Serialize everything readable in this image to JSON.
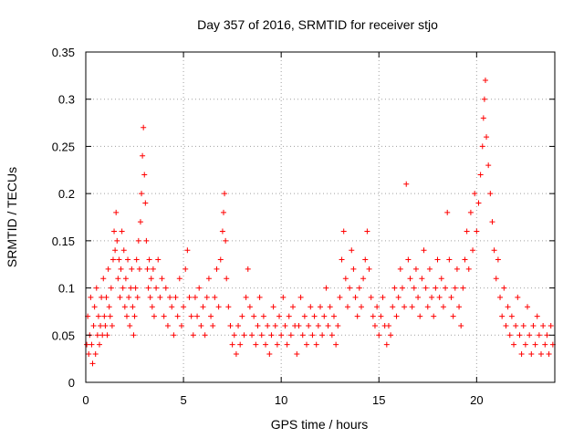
{
  "chart_data": {
    "type": "scatter",
    "title": "Day 357 of 2016, SRMTID for receiver stjo",
    "xlabel": "GPS time / hours",
    "ylabel": "SRMTID / TECUs",
    "xlim": [
      0,
      24
    ],
    "ylim": [
      0,
      0.35
    ],
    "xticks": [
      0,
      5,
      10,
      15,
      20
    ],
    "xtick_labels": [
      "0",
      "5",
      "10",
      "15",
      "20"
    ],
    "yticks": [
      0,
      0.05,
      0.1,
      0.15,
      0.2,
      0.25,
      0.3,
      0.35
    ],
    "ytick_labels": [
      "0",
      "0.05",
      "0.1",
      "0.15",
      "0.2",
      "0.25",
      "0.3",
      "0.35"
    ],
    "grid": true,
    "marker": "+",
    "marker_color": "#ff0000",
    "series": [
      {
        "name": "SRMTID",
        "points": [
          [
            0.05,
            0.04
          ],
          [
            0.1,
            0.07
          ],
          [
            0.15,
            0.03
          ],
          [
            0.2,
            0.05
          ],
          [
            0.25,
            0.09
          ],
          [
            0.3,
            0.04
          ],
          [
            0.35,
            0.02
          ],
          [
            0.4,
            0.06
          ],
          [
            0.45,
            0.08
          ],
          [
            0.5,
            0.03
          ],
          [
            0.55,
            0.1
          ],
          [
            0.6,
            0.05
          ],
          [
            0.65,
            0.07
          ],
          [
            0.7,
            0.04
          ],
          [
            0.75,
            0.06
          ],
          [
            0.8,
            0.09
          ],
          [
            0.85,
            0.05
          ],
          [
            0.9,
            0.11
          ],
          [
            0.95,
            0.07
          ],
          [
            1.0,
            0.06
          ],
          [
            1.05,
            0.09
          ],
          [
            1.1,
            0.05
          ],
          [
            1.15,
            0.12
          ],
          [
            1.2,
            0.08
          ],
          [
            1.25,
            0.07
          ],
          [
            1.3,
            0.1
          ],
          [
            1.35,
            0.06
          ],
          [
            1.4,
            0.13
          ],
          [
            1.45,
            0.16
          ],
          [
            1.5,
            0.14
          ],
          [
            1.55,
            0.18
          ],
          [
            1.6,
            0.15
          ],
          [
            1.65,
            0.11
          ],
          [
            1.7,
            0.13
          ],
          [
            1.75,
            0.09
          ],
          [
            1.8,
            0.12
          ],
          [
            1.85,
            0.16
          ],
          [
            1.9,
            0.1
          ],
          [
            1.95,
            0.14
          ],
          [
            2.0,
            0.08
          ],
          [
            2.05,
            0.11
          ],
          [
            2.1,
            0.07
          ],
          [
            2.15,
            0.13
          ],
          [
            2.2,
            0.09
          ],
          [
            2.25,
            0.06
          ],
          [
            2.3,
            0.1
          ],
          [
            2.35,
            0.12
          ],
          [
            2.4,
            0.08
          ],
          [
            2.45,
            0.05
          ],
          [
            2.5,
            0.07
          ],
          [
            2.55,
            0.1
          ],
          [
            2.6,
            0.13
          ],
          [
            2.65,
            0.09
          ],
          [
            2.7,
            0.15
          ],
          [
            2.75,
            0.12
          ],
          [
            2.8,
            0.17
          ],
          [
            2.85,
            0.2
          ],
          [
            2.9,
            0.24
          ],
          [
            2.95,
            0.27
          ],
          [
            3.0,
            0.22
          ],
          [
            3.05,
            0.19
          ],
          [
            3.1,
            0.15
          ],
          [
            3.15,
            0.12
          ],
          [
            3.2,
            0.1
          ],
          [
            3.25,
            0.13
          ],
          [
            3.3,
            0.09
          ],
          [
            3.35,
            0.11
          ],
          [
            3.4,
            0.08
          ],
          [
            3.45,
            0.12
          ],
          [
            3.5,
            0.07
          ],
          [
            3.6,
            0.1
          ],
          [
            3.7,
            0.13
          ],
          [
            3.8,
            0.09
          ],
          [
            3.9,
            0.11
          ],
          [
            4.0,
            0.07
          ],
          [
            4.1,
            0.1
          ],
          [
            4.2,
            0.06
          ],
          [
            4.3,
            0.09
          ],
          [
            4.4,
            0.08
          ],
          [
            4.5,
            0.05
          ],
          [
            4.6,
            0.09
          ],
          [
            4.7,
            0.07
          ],
          [
            4.8,
            0.11
          ],
          [
            4.9,
            0.06
          ],
          [
            5.0,
            0.08
          ],
          [
            5.1,
            0.12
          ],
          [
            5.2,
            0.14
          ],
          [
            5.3,
            0.09
          ],
          [
            5.4,
            0.07
          ],
          [
            5.5,
            0.05
          ],
          [
            5.6,
            0.09
          ],
          [
            5.7,
            0.07
          ],
          [
            5.8,
            0.1
          ],
          [
            5.9,
            0.06
          ],
          [
            6.0,
            0.08
          ],
          [
            6.1,
            0.05
          ],
          [
            6.2,
            0.09
          ],
          [
            6.3,
            0.11
          ],
          [
            6.4,
            0.07
          ],
          [
            6.5,
            0.06
          ],
          [
            6.6,
            0.09
          ],
          [
            6.7,
            0.12
          ],
          [
            6.8,
            0.08
          ],
          [
            6.9,
            0.13
          ],
          [
            7.0,
            0.16
          ],
          [
            7.05,
            0.18
          ],
          [
            7.1,
            0.2
          ],
          [
            7.15,
            0.15
          ],
          [
            7.2,
            0.11
          ],
          [
            7.3,
            0.08
          ],
          [
            7.4,
            0.06
          ],
          [
            7.5,
            0.04
          ],
          [
            7.6,
            0.05
          ],
          [
            7.7,
            0.03
          ],
          [
            7.8,
            0.06
          ],
          [
            7.9,
            0.04
          ],
          [
            8.0,
            0.07
          ],
          [
            8.1,
            0.05
          ],
          [
            8.2,
            0.09
          ],
          [
            8.3,
            0.12
          ],
          [
            8.4,
            0.08
          ],
          [
            8.5,
            0.05
          ],
          [
            8.6,
            0.07
          ],
          [
            8.7,
            0.04
          ],
          [
            8.8,
            0.06
          ],
          [
            8.9,
            0.09
          ],
          [
            9.0,
            0.05
          ],
          [
            9.1,
            0.07
          ],
          [
            9.2,
            0.04
          ],
          [
            9.3,
            0.06
          ],
          [
            9.4,
            0.03
          ],
          [
            9.5,
            0.05
          ],
          [
            9.6,
            0.08
          ],
          [
            9.7,
            0.06
          ],
          [
            9.8,
            0.04
          ],
          [
            9.9,
            0.07
          ],
          [
            10.0,
            0.05
          ],
          [
            10.1,
            0.09
          ],
          [
            10.2,
            0.06
          ],
          [
            10.3,
            0.04
          ],
          [
            10.4,
            0.07
          ],
          [
            10.5,
            0.05
          ],
          [
            10.6,
            0.08
          ],
          [
            10.7,
            0.06
          ],
          [
            10.8,
            0.03
          ],
          [
            10.9,
            0.06
          ],
          [
            11.0,
            0.09
          ],
          [
            11.1,
            0.05
          ],
          [
            11.2,
            0.07
          ],
          [
            11.3,
            0.04
          ],
          [
            11.4,
            0.06
          ],
          [
            11.5,
            0.08
          ],
          [
            11.6,
            0.05
          ],
          [
            11.7,
            0.07
          ],
          [
            11.8,
            0.04
          ],
          [
            11.9,
            0.06
          ],
          [
            12.0,
            0.08
          ],
          [
            12.1,
            0.05
          ],
          [
            12.2,
            0.07
          ],
          [
            12.3,
            0.1
          ],
          [
            12.4,
            0.06
          ],
          [
            12.5,
            0.08
          ],
          [
            12.6,
            0.05
          ],
          [
            12.7,
            0.07
          ],
          [
            12.8,
            0.04
          ],
          [
            12.9,
            0.06
          ],
          [
            13.0,
            0.09
          ],
          [
            13.1,
            0.13
          ],
          [
            13.2,
            0.16
          ],
          [
            13.3,
            0.11
          ],
          [
            13.4,
            0.08
          ],
          [
            13.5,
            0.1
          ],
          [
            13.6,
            0.14
          ],
          [
            13.7,
            0.12
          ],
          [
            13.8,
            0.09
          ],
          [
            13.9,
            0.07
          ],
          [
            14.0,
            0.1
          ],
          [
            14.1,
            0.08
          ],
          [
            14.2,
            0.11
          ],
          [
            14.3,
            0.13
          ],
          [
            14.4,
            0.16
          ],
          [
            14.5,
            0.12
          ],
          [
            14.6,
            0.09
          ],
          [
            14.7,
            0.07
          ],
          [
            14.8,
            0.06
          ],
          [
            14.9,
            0.08
          ],
          [
            15.0,
            0.05
          ],
          [
            15.1,
            0.07
          ],
          [
            15.2,
            0.09
          ],
          [
            15.3,
            0.06
          ],
          [
            15.4,
            0.04
          ],
          [
            15.5,
            0.06
          ],
          [
            15.6,
            0.05
          ],
          [
            15.7,
            0.08
          ],
          [
            15.8,
            0.1
          ],
          [
            15.9,
            0.07
          ],
          [
            16.0,
            0.09
          ],
          [
            16.1,
            0.12
          ],
          [
            16.2,
            0.1
          ],
          [
            16.3,
            0.08
          ],
          [
            16.4,
            0.21
          ],
          [
            16.5,
            0.13
          ],
          [
            16.6,
            0.11
          ],
          [
            16.7,
            0.08
          ],
          [
            16.8,
            0.1
          ],
          [
            16.9,
            0.12
          ],
          [
            17.0,
            0.09
          ],
          [
            17.1,
            0.07
          ],
          [
            17.2,
            0.11
          ],
          [
            17.3,
            0.14
          ],
          [
            17.4,
            0.1
          ],
          [
            17.5,
            0.08
          ],
          [
            17.6,
            0.12
          ],
          [
            17.7,
            0.09
          ],
          [
            17.8,
            0.07
          ],
          [
            17.9,
            0.1
          ],
          [
            18.0,
            0.13
          ],
          [
            18.1,
            0.09
          ],
          [
            18.2,
            0.11
          ],
          [
            18.3,
            0.08
          ],
          [
            18.4,
            0.1
          ],
          [
            18.5,
            0.18
          ],
          [
            18.6,
            0.13
          ],
          [
            18.7,
            0.09
          ],
          [
            18.8,
            0.07
          ],
          [
            18.9,
            0.1
          ],
          [
            19.0,
            0.12
          ],
          [
            19.1,
            0.08
          ],
          [
            19.2,
            0.06
          ],
          [
            19.3,
            0.1
          ],
          [
            19.4,
            0.13
          ],
          [
            19.5,
            0.16
          ],
          [
            19.6,
            0.12
          ],
          [
            19.7,
            0.18
          ],
          [
            19.8,
            0.14
          ],
          [
            19.9,
            0.2
          ],
          [
            20.0,
            0.16
          ],
          [
            20.1,
            0.19
          ],
          [
            20.2,
            0.22
          ],
          [
            20.3,
            0.25
          ],
          [
            20.35,
            0.28
          ],
          [
            20.4,
            0.3
          ],
          [
            20.45,
            0.32
          ],
          [
            20.5,
            0.26
          ],
          [
            20.6,
            0.23
          ],
          [
            20.7,
            0.2
          ],
          [
            20.8,
            0.17
          ],
          [
            20.9,
            0.14
          ],
          [
            21.0,
            0.11
          ],
          [
            21.1,
            0.13
          ],
          [
            21.2,
            0.09
          ],
          [
            21.3,
            0.07
          ],
          [
            21.4,
            0.1
          ],
          [
            21.5,
            0.06
          ],
          [
            21.6,
            0.08
          ],
          [
            21.7,
            0.05
          ],
          [
            21.8,
            0.07
          ],
          [
            21.9,
            0.04
          ],
          [
            22.0,
            0.06
          ],
          [
            22.1,
            0.09
          ],
          [
            22.2,
            0.05
          ],
          [
            22.3,
            0.03
          ],
          [
            22.4,
            0.06
          ],
          [
            22.5,
            0.04
          ],
          [
            22.6,
            0.08
          ],
          [
            22.7,
            0.05
          ],
          [
            22.8,
            0.03
          ],
          [
            22.9,
            0.06
          ],
          [
            23.0,
            0.04
          ],
          [
            23.1,
            0.07
          ],
          [
            23.2,
            0.05
          ],
          [
            23.3,
            0.03
          ],
          [
            23.4,
            0.06
          ],
          [
            23.5,
            0.04
          ],
          [
            23.6,
            0.05
          ],
          [
            23.7,
            0.03
          ],
          [
            23.8,
            0.06
          ],
          [
            23.9,
            0.04
          ]
        ]
      }
    ]
  }
}
